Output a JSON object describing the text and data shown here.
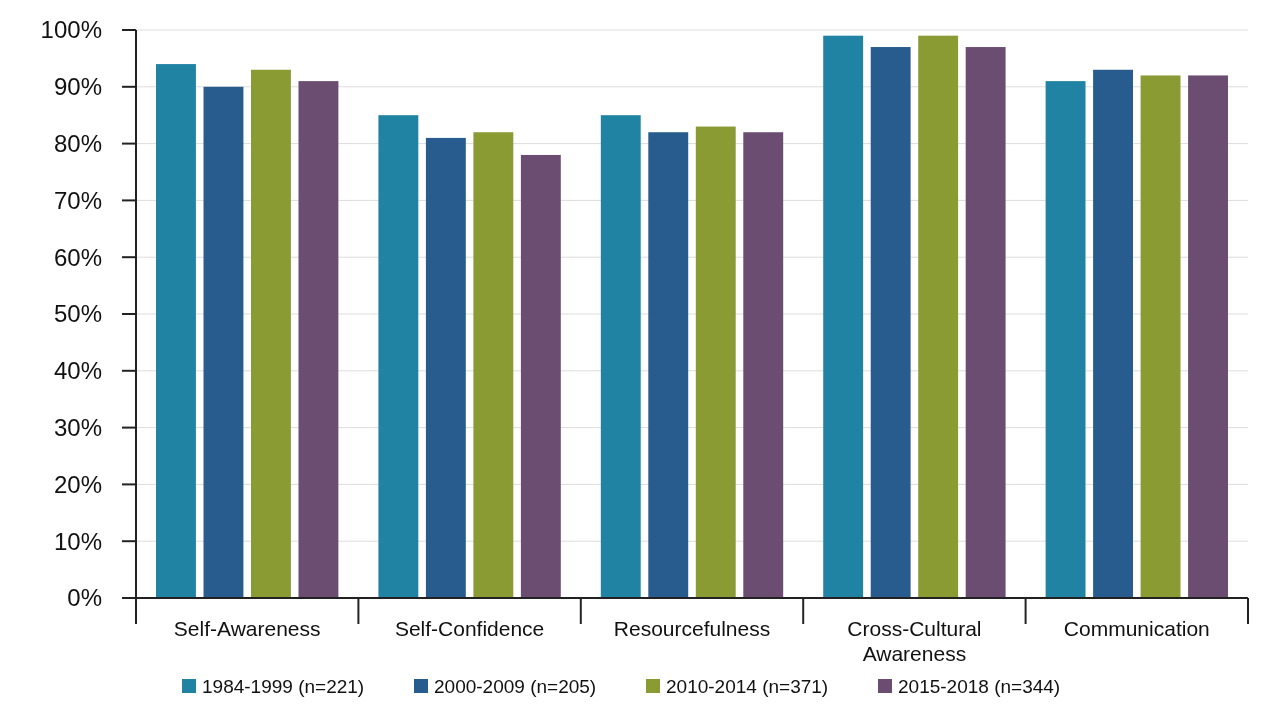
{
  "chart_data": {
    "type": "bar",
    "categories": [
      "Self-Awareness",
      "Self-Confidence",
      "Resourcefulness",
      "Cross-Cultural Awareness",
      "Communication"
    ],
    "series": [
      {
        "name": "1984-1999 (n=221)",
        "color": "#2083a4",
        "values": [
          94,
          85,
          85,
          99,
          91
        ]
      },
      {
        "name": "2000-2009 (n=205)",
        "color": "#285b8e",
        "values": [
          90,
          81,
          82,
          97,
          93
        ]
      },
      {
        "name": "2010-2014 (n=371)",
        "color": "#8a9b34",
        "values": [
          93,
          82,
          83,
          99,
          92
        ]
      },
      {
        "name": "2015-2018 (n=344)",
        "color": "#6b4d71",
        "values": [
          91,
          78,
          82,
          97,
          92
        ]
      }
    ],
    "ylim": [
      0,
      100
    ],
    "yticks": [
      {
        "value": 0,
        "label": "0%"
      },
      {
        "value": 10,
        "label": "10%"
      },
      {
        "value": 20,
        "label": "20%"
      },
      {
        "value": 30,
        "label": "30%"
      },
      {
        "value": 40,
        "label": "40%"
      },
      {
        "value": 50,
        "label": "50%"
      },
      {
        "value": 60,
        "label": "60%"
      },
      {
        "value": 70,
        "label": "70%"
      },
      {
        "value": 80,
        "label": "80%"
      },
      {
        "value": 90,
        "label": "90%"
      },
      {
        "value": 100,
        "label": "100%"
      }
    ],
    "grid": "y",
    "legend": "bottom"
  }
}
